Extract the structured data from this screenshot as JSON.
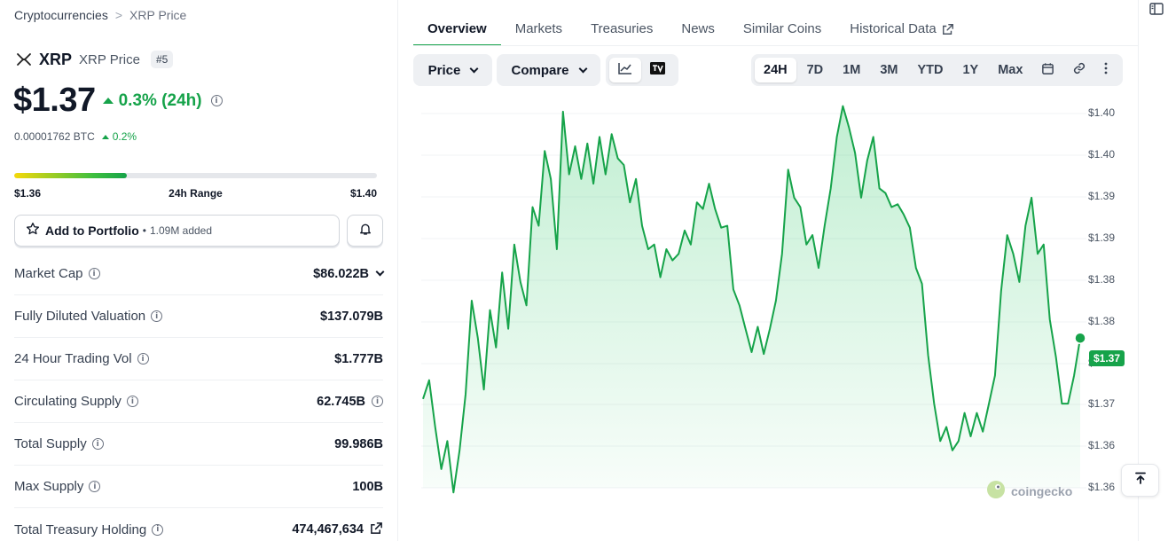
{
  "breadcrumb": {
    "parent": "Cryptocurrencies",
    "separator": ">",
    "current": "XRP Price"
  },
  "coin": {
    "symbol": "XRP",
    "name": "XRP Price",
    "rank": "#5",
    "icon": "xrp-logo"
  },
  "price": {
    "value": "$1.37",
    "change": "0.3% (24h)",
    "btc_value": "0.00001762 BTC",
    "btc_change": "0.2%"
  },
  "range": {
    "low": "$1.36",
    "label": "24h Range",
    "high": "$1.40",
    "position": 0.31
  },
  "portfolio": {
    "label": "Add to Portfolio",
    "dot": "•",
    "added": "1.09M added"
  },
  "stats": [
    {
      "label": "Market Cap",
      "value": "$86.022B"
    },
    {
      "label": "Fully Diluted Valuation",
      "value": "$137.079B"
    },
    {
      "label": "24 Hour Trading Vol",
      "value": "$1.777B"
    },
    {
      "label": "Circulating Supply",
      "value": "62.745B"
    },
    {
      "label": "Total Supply",
      "value": "99.986B"
    },
    {
      "label": "Max Supply",
      "value": "100B"
    },
    {
      "label": "Total Treasury Holding",
      "value": "474,467,634"
    }
  ],
  "tabs": [
    {
      "label": "Overview",
      "active": true
    },
    {
      "label": "Markets"
    },
    {
      "label": "Treasuries"
    },
    {
      "label": "News"
    },
    {
      "label": "Similar Coins"
    },
    {
      "label": "Historical Data"
    }
  ],
  "toolbar": {
    "price_label": "Price",
    "compare_label": "Compare",
    "chart_type_icons": [
      "line-chart-icon",
      "tradingview-icon"
    ],
    "ranges": [
      "24H",
      "7D",
      "1M",
      "3M",
      "YTD",
      "1Y",
      "Max"
    ],
    "active_range": "24H",
    "extra_icons": [
      "calendar-icon",
      "link-icon",
      "more-vertical-icon"
    ]
  },
  "chart": {
    "y_labels": [
      "$1.40",
      "$1.40",
      "$1.39",
      "$1.39",
      "$1.38",
      "$1.38",
      "$1.37",
      "$1.37",
      "$1.36",
      "$1.36"
    ],
    "current_tag": "$1.37",
    "watermark": "coingecko",
    "line_color": "#16a34a"
  },
  "chart_data": {
    "type": "area",
    "title": "",
    "xlabel": "",
    "ylabel": "",
    "y_tick_labels": [
      "$1.40",
      "$1.40",
      "$1.39",
      "$1.39",
      "$1.38",
      "$1.38",
      "$1.37",
      "$1.37",
      "$1.36",
      "$1.36"
    ],
    "ylim": [
      1.36,
      1.4
    ],
    "series": [
      {
        "values": [
          1.3695,
          1.3715,
          1.3665,
          1.362,
          1.365,
          1.3595,
          1.364,
          1.37,
          1.38,
          1.376,
          1.3705,
          1.379,
          1.375,
          1.383,
          1.377,
          1.386,
          1.382,
          1.3795,
          1.39,
          1.388,
          1.396,
          1.393,
          1.3855,
          1.4002,
          1.3935,
          1.3965,
          1.393,
          1.3968,
          1.3925,
          1.3975,
          1.3935,
          1.3978,
          1.3952,
          1.3945,
          1.3905,
          1.393,
          1.388,
          1.3855,
          1.386,
          1.3825,
          1.3855,
          1.3843,
          1.385,
          1.3875,
          1.386,
          1.3905,
          1.3898,
          1.3925,
          1.3898,
          1.3878,
          1.388,
          1.3812,
          1.3795,
          1.377,
          1.3745,
          1.3772,
          1.3743,
          1.377,
          1.38,
          1.385,
          1.394,
          1.391,
          1.39,
          1.386,
          1.387,
          1.3835,
          1.388,
          1.392,
          1.3975,
          1.4008,
          1.3985,
          1.3958,
          1.391,
          1.395,
          1.3975,
          1.392,
          1.3915,
          1.39,
          1.3903,
          1.3892,
          1.3878,
          1.3835,
          1.3818,
          1.3742,
          1.369,
          1.365,
          1.3665,
          1.364,
          1.365,
          1.368,
          1.3655,
          1.368,
          1.366,
          1.369,
          1.372,
          1.381,
          1.387,
          1.385,
          1.382,
          1.388,
          1.391,
          1.385,
          1.386,
          1.378,
          1.374,
          1.369,
          1.369,
          1.372,
          1.376
        ]
      }
    ]
  },
  "left_icons": {
    "breadcrumb_sep": "chevron-right-icon",
    "portfolio": "star-icon",
    "bell": "bell-icon",
    "info": "info-icon",
    "external": "external-link-icon"
  }
}
